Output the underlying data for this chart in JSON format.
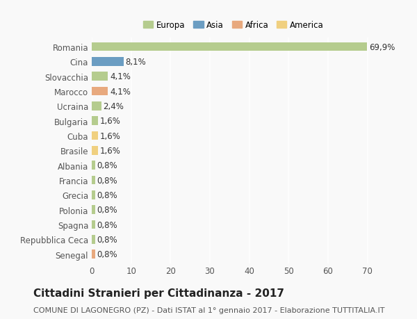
{
  "countries": [
    "Romania",
    "Cina",
    "Slovacchia",
    "Marocco",
    "Ucraina",
    "Bulgaria",
    "Cuba",
    "Brasile",
    "Albania",
    "Francia",
    "Grecia",
    "Polonia",
    "Spagna",
    "Repubblica Ceca",
    "Senegal"
  ],
  "values": [
    69.9,
    8.1,
    4.1,
    4.1,
    2.4,
    1.6,
    1.6,
    1.6,
    0.8,
    0.8,
    0.8,
    0.8,
    0.8,
    0.8,
    0.8
  ],
  "labels": [
    "69,9%",
    "8,1%",
    "4,1%",
    "4,1%",
    "2,4%",
    "1,6%",
    "1,6%",
    "1,6%",
    "0,8%",
    "0,8%",
    "0,8%",
    "0,8%",
    "0,8%",
    "0,8%",
    "0,8%"
  ],
  "continents": [
    "Europa",
    "Asia",
    "Europa",
    "Africa",
    "Europa",
    "Europa",
    "America",
    "America",
    "Europa",
    "Europa",
    "Europa",
    "Europa",
    "Europa",
    "Europa",
    "Africa"
  ],
  "continent_colors": {
    "Europa": "#b5cc8e",
    "Asia": "#6b9dc2",
    "Africa": "#e8a97e",
    "America": "#f0d080"
  },
  "legend_order": [
    "Europa",
    "Asia",
    "Africa",
    "America"
  ],
  "legend_colors": [
    "#b5cc8e",
    "#6b9dc2",
    "#e8a97e",
    "#f0d080"
  ],
  "xlim": [
    0,
    72
  ],
  "xticks": [
    0,
    10,
    20,
    30,
    40,
    50,
    60,
    70
  ],
  "title": "Cittadini Stranieri per Cittadinanza - 2017",
  "subtitle": "COMUNE DI LAGONEGRO (PZ) - Dati ISTAT al 1° gennaio 2017 - Elaborazione TUTTITALIA.IT",
  "background_color": "#f9f9f9",
  "bar_height": 0.6,
  "label_fontsize": 8.5,
  "tick_fontsize": 8.5,
  "title_fontsize": 11,
  "subtitle_fontsize": 8
}
